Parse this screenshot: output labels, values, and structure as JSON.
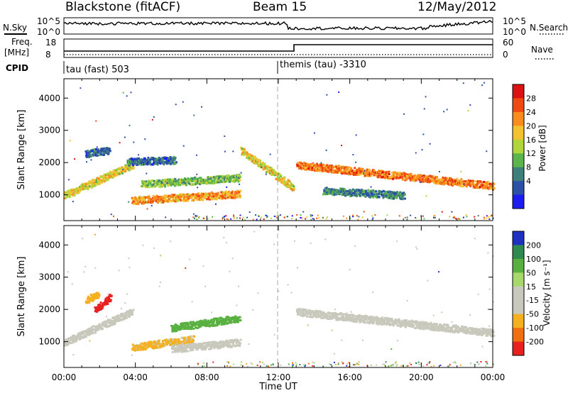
{
  "header": {
    "station": "Blackstone (fitACF)",
    "beam": "Beam 15",
    "date": "12/May/2012"
  },
  "sky_panel": {
    "left_label": "N.Sky",
    "left_ticks": [
      "10^5",
      "10^0"
    ],
    "right_ticks": [
      "10^5",
      "10^0"
    ],
    "right_label": "N.Search"
  },
  "freq_panel": {
    "left_label_1": "Freq.",
    "left_label_2": "[MHz]",
    "left_ticks": [
      "18",
      "8"
    ],
    "right_ticks": [
      "60",
      "0"
    ],
    "right_label": "Nave"
  },
  "cpid": {
    "label": "CPID",
    "mode_1": "tau (fast) 503",
    "mode_2": "themis (tau) -3310"
  },
  "chart_data": [
    {
      "type": "heatmap",
      "title": "",
      "xlabel": "",
      "ylabel": "Slant Range [km]",
      "x_unit": "hours UT",
      "xlim": [
        0,
        24
      ],
      "ylim": [
        200,
        4600
      ],
      "y_ticks": [
        "1000",
        "2000",
        "3000",
        "4000"
      ],
      "colorbar": {
        "label": "Power [dB]",
        "ticks": [
          "28",
          "24",
          "20",
          "16",
          "12",
          "8",
          "4"
        ],
        "colors": [
          "#dd1111",
          "#f04a14",
          "#f98c1c",
          "#f4c230",
          "#b0d63c",
          "#5ab54a",
          "#3d7f7a",
          "#2c4fa8",
          "#1c1cf0"
        ]
      },
      "features": [
        {
          "name": "early-band",
          "t_start": 0.0,
          "t_end": 3.8,
          "range_start": 1000,
          "range_end": 1950,
          "power_db": 18
        },
        {
          "name": "upper-patch",
          "t_start": 1.2,
          "t_end": 2.5,
          "range_start": 2300,
          "range_end": 2400,
          "power_db": 6
        },
        {
          "name": "morning-band",
          "t_start": 3.8,
          "t_end": 9.8,
          "range_start": 850,
          "range_end": 1050,
          "power_db": 22
        },
        {
          "name": "mid-band",
          "t_start": 4.3,
          "t_end": 9.8,
          "range_start": 1350,
          "range_end": 1550,
          "power_db": 13
        },
        {
          "name": "high-band",
          "t_start": 3.5,
          "t_end": 6.2,
          "range_start": 2050,
          "range_end": 2100,
          "power_db": 7
        },
        {
          "name": "pre-noon-band",
          "t_start": 9.9,
          "t_end": 12.8,
          "range_start": 2400,
          "range_end": 1250,
          "power_db": 18
        },
        {
          "name": "afternoon-band",
          "t_start": 13.0,
          "t_end": 24.0,
          "range_start": 1950,
          "range_end": 1300,
          "power_db": 24
        },
        {
          "name": "afternoon-lower",
          "t_start": 14.5,
          "t_end": 19.0,
          "range_start": 1150,
          "range_end": 1000,
          "power_db": 8
        }
      ]
    },
    {
      "type": "heatmap",
      "title": "",
      "xlabel": "Time UT",
      "ylabel": "Slant Range [km]",
      "x_unit": "hours UT",
      "xlim": [
        0,
        24
      ],
      "ylim": [
        200,
        4600
      ],
      "x_ticks": [
        "00:00",
        "04:00",
        "08:00",
        "12:00",
        "16:00",
        "20:00",
        "00:00"
      ],
      "y_ticks": [
        "1000",
        "2000",
        "3000",
        "4000"
      ],
      "colorbar": {
        "label": "Velocity [m s⁻¹]",
        "ticks": [
          "200",
          "100",
          "50",
          "15",
          "-15",
          "-50",
          "-100",
          "-200"
        ],
        "colors": [
          "#2030c0",
          "#2f8a4f",
          "#58b040",
          "#a6d86a",
          "#c8c8bc",
          "#c8c8bc",
          "#f4b020",
          "#f07010",
          "#e82020"
        ]
      },
      "features": [
        {
          "name": "ground-scatter-early",
          "t_start": 0.0,
          "t_end": 3.8,
          "range_start": 1000,
          "range_end": 1950,
          "velocity": 0
        },
        {
          "name": "red-patch",
          "t_start": 1.7,
          "t_end": 2.6,
          "range_start": 2000,
          "range_end": 2400,
          "velocity": -220
        },
        {
          "name": "orange-patch",
          "t_start": 1.2,
          "t_end": 1.9,
          "range_start": 2300,
          "range_end": 2500,
          "velocity": -100
        },
        {
          "name": "orange-band",
          "t_start": 3.8,
          "t_end": 7.2,
          "range_start": 850,
          "range_end": 1100,
          "velocity": -60
        },
        {
          "name": "grey-band",
          "t_start": 6.0,
          "t_end": 9.8,
          "range_start": 800,
          "range_end": 1000,
          "velocity": 0
        },
        {
          "name": "green-band",
          "t_start": 6.0,
          "t_end": 9.8,
          "range_start": 1450,
          "range_end": 1750,
          "velocity": 60
        },
        {
          "name": "afternoon-ground",
          "t_start": 13.0,
          "t_end": 24.0,
          "range_start": 1950,
          "range_end": 1300,
          "velocity": 0
        }
      ]
    }
  ]
}
